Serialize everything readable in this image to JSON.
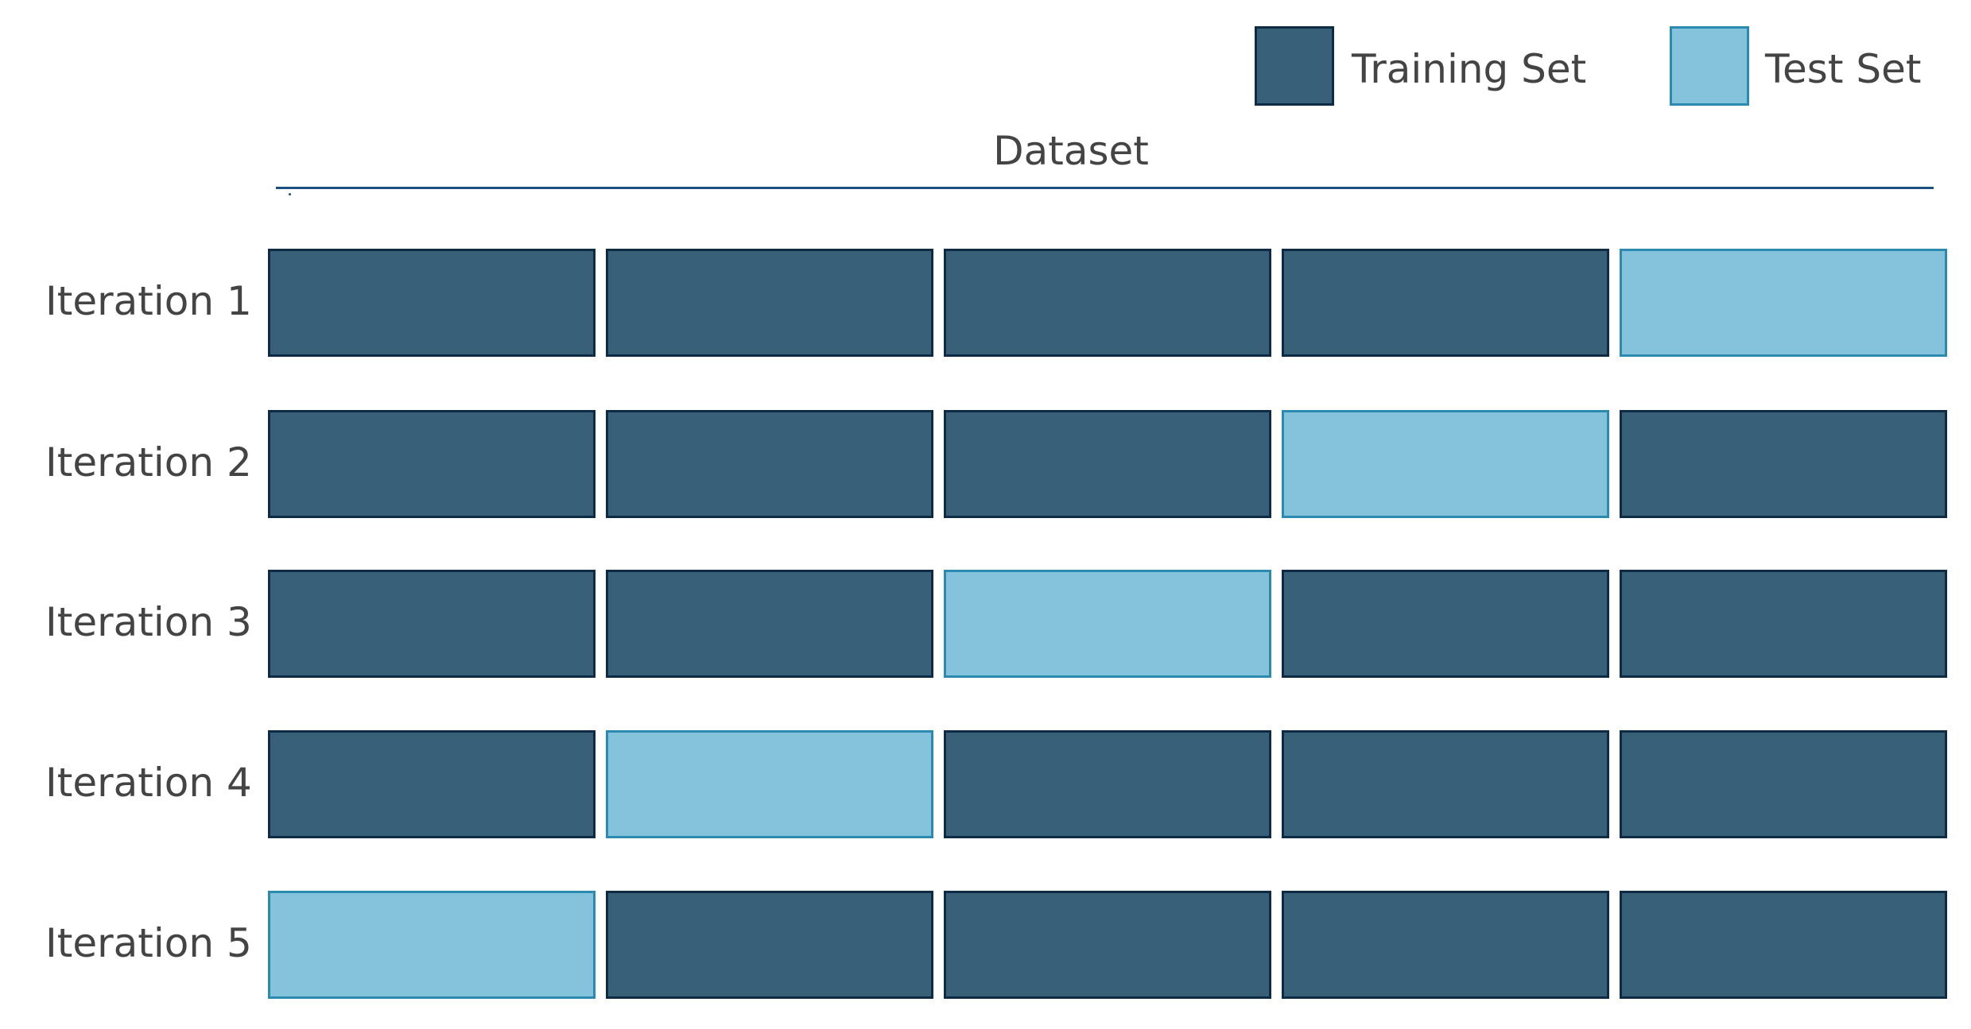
{
  "legend": {
    "training": {
      "label": "Training Set",
      "fill": "#386078",
      "border": "#0d2b44"
    },
    "test": {
      "label": "Test Set",
      "fill": "#85c2dc",
      "border": "#2b8ab0"
    }
  },
  "dataset": {
    "title": "Dataset",
    "line_color": "#1a4f80"
  },
  "fold_count": 5,
  "iterations": [
    {
      "label": "Iteration 1",
      "test_fold": 5
    },
    {
      "label": "Iteration 2",
      "test_fold": 4
    },
    {
      "label": "Iteration 3",
      "test_fold": 3
    },
    {
      "label": "Iteration 4",
      "test_fold": 2
    },
    {
      "label": "Iteration 5",
      "test_fold": 1
    }
  ]
}
